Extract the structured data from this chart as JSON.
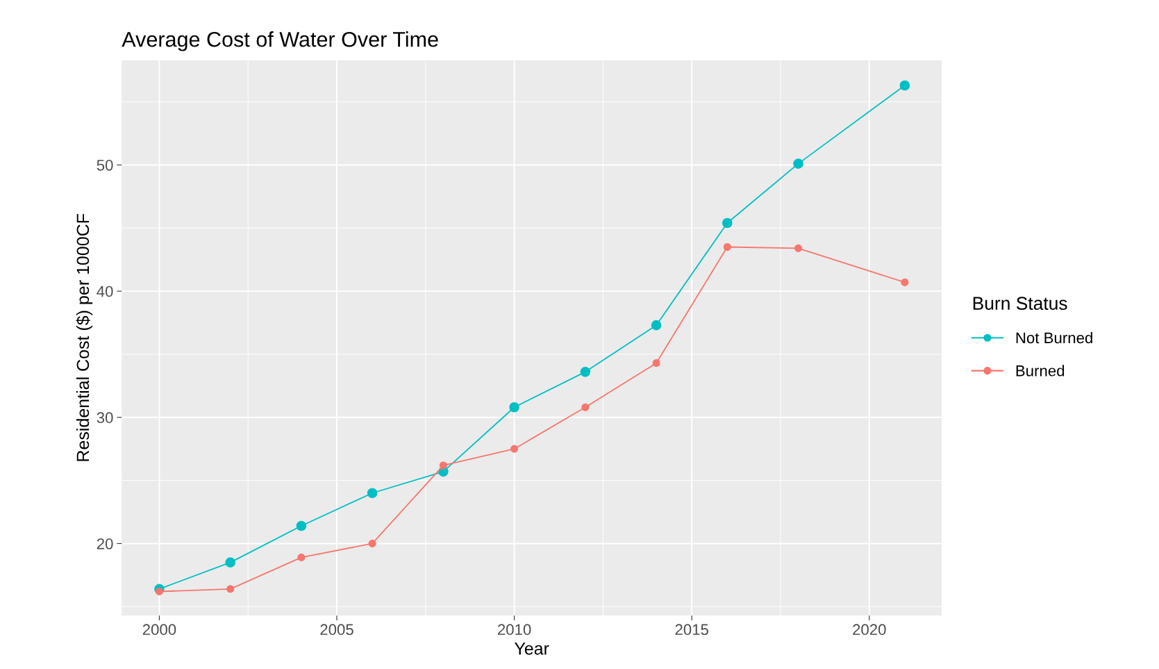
{
  "chart_data": {
    "type": "line",
    "title": "Average Cost of Water Over Time",
    "xlabel": "Year",
    "ylabel": "Residential Cost ($) per 1000CF",
    "legend_title": "Burn Status",
    "x": [
      2000,
      2002,
      2004,
      2006,
      2008,
      2010,
      2012,
      2014,
      2016,
      2018,
      2021
    ],
    "series": [
      {
        "name": "Not Burned",
        "color": "#00bfc4",
        "values": [
          16.4,
          18.5,
          21.4,
          24.0,
          25.7,
          30.8,
          33.6,
          37.3,
          45.4,
          50.1,
          56.3
        ]
      },
      {
        "name": "Burned",
        "color": "#f8766d",
        "values": [
          16.2,
          16.4,
          18.9,
          20.0,
          26.2,
          27.5,
          30.8,
          34.3,
          43.5,
          43.4,
          40.7
        ]
      }
    ],
    "xlim": [
      1998.94,
      2022.04
    ],
    "ylim": [
      14.3,
      58.3
    ],
    "xticks": [
      2000,
      2005,
      2010,
      2015,
      2020
    ],
    "yticks": [
      20,
      30,
      40,
      50
    ],
    "grid": true,
    "legend": "right",
    "marker": "circle",
    "line_style": "solid"
  }
}
